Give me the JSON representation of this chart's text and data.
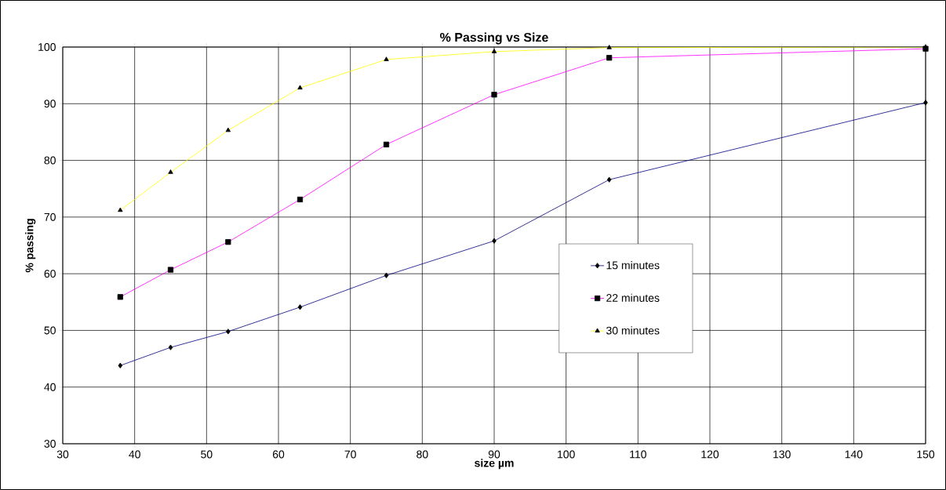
{
  "chart_data": {
    "type": "line",
    "title": "% Passing vs Size",
    "xlabel": "size µm",
    "ylabel": "% passing",
    "x": [
      38,
      45,
      53,
      63,
      75,
      90,
      106,
      150
    ],
    "series": [
      {
        "name": "15 minutes",
        "color": "#000080",
        "marker": "diamond",
        "values": [
          43.8,
          47.0,
          49.8,
          54.1,
          59.7,
          65.8,
          76.6,
          90.2
        ]
      },
      {
        "name": "22 minutes",
        "color": "#ff00ff",
        "marker": "square",
        "values": [
          55.9,
          60.7,
          65.6,
          73.1,
          82.8,
          91.6,
          98.1,
          99.7
        ]
      },
      {
        "name": "30 minutes",
        "color": "#ffff00",
        "marker": "triangle",
        "values": [
          71.2,
          77.9,
          85.3,
          92.8,
          97.8,
          99.2,
          99.9,
          100.0
        ]
      }
    ],
    "xlim": [
      30,
      150
    ],
    "xticks": [
      30,
      40,
      50,
      60,
      70,
      80,
      90,
      100,
      110,
      120,
      130,
      140,
      150
    ],
    "ylim": [
      30,
      100
    ],
    "yticks": [
      30,
      40,
      50,
      60,
      70,
      80,
      90,
      100
    ],
    "grid": true,
    "legend": "right",
    "line_style": "solid"
  }
}
